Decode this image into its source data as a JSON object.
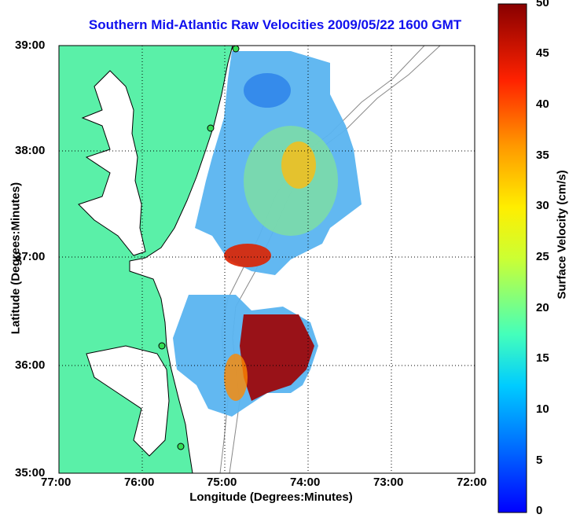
{
  "title": "Southern Mid-Atlantic Raw Velocities 2009/05/22 1600 GMT",
  "axes": {
    "xlabel": "Longitude (Degrees:Minutes)",
    "ylabel": "Latitude (Degrees:Minutes)",
    "x_ticks": [
      "77:00",
      "76:00",
      "75:00",
      "74:00",
      "73:00",
      "72:00"
    ],
    "y_ticks": [
      "39:00",
      "38:00",
      "37:00",
      "36:00",
      "35:00"
    ],
    "xlim": [
      -77,
      -72
    ],
    "ylim": [
      35,
      39
    ]
  },
  "colorbar": {
    "label": "Surface Velocity (cm/s)",
    "ticks": [
      "0",
      "5",
      "10",
      "15",
      "20",
      "25",
      "30",
      "35",
      "40",
      "45",
      "50"
    ],
    "range": [
      0,
      50
    ]
  },
  "colors": {
    "land": "#5af0a8",
    "ocean": "#ffffff",
    "title": "#1010ee"
  }
}
